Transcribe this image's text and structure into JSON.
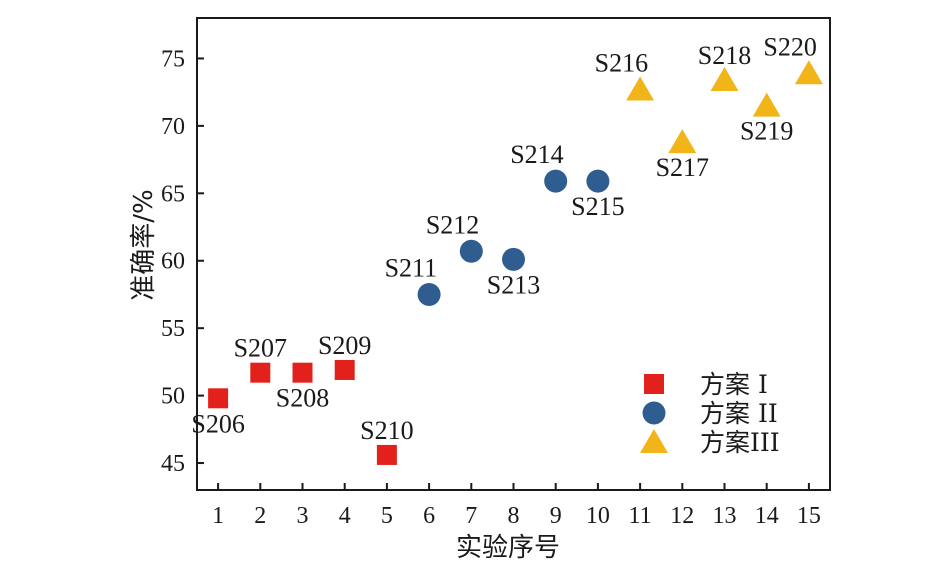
{
  "chart_data": {
    "type": "scatter",
    "xlabel": "实验序号",
    "ylabel": "准确率/%",
    "xlim": [
      0.5,
      15.5
    ],
    "ylim": [
      43,
      78
    ],
    "xticks": [
      1,
      2,
      3,
      4,
      5,
      6,
      7,
      8,
      9,
      10,
      11,
      12,
      13,
      14,
      15
    ],
    "yticks": [
      45,
      50,
      55,
      60,
      65,
      70,
      75
    ],
    "grid": false,
    "legend_position": "bottom-right",
    "series": [
      {
        "name": "方案 I",
        "marker": "square",
        "color": "#e3211c",
        "points": [
          {
            "x": 1,
            "y": 49.8,
            "label": "S206",
            "label_pos": "below"
          },
          {
            "x": 2,
            "y": 51.7,
            "label": "S207",
            "label_pos": "above"
          },
          {
            "x": 3,
            "y": 51.7,
            "label": "S208",
            "label_pos": "below"
          },
          {
            "x": 4,
            "y": 51.9,
            "label": "S209",
            "label_pos": "above"
          },
          {
            "x": 5,
            "y": 45.6,
            "label": "S210",
            "label_pos": "above"
          }
        ]
      },
      {
        "name": "方案 II",
        "marker": "circle",
        "color": "#2f5d8f",
        "points": [
          {
            "x": 6,
            "y": 57.5,
            "label": "S211",
            "label_pos": "above-left"
          },
          {
            "x": 7,
            "y": 60.7,
            "label": "S212",
            "label_pos": "above-left"
          },
          {
            "x": 8,
            "y": 60.1,
            "label": "S213",
            "label_pos": "below"
          },
          {
            "x": 9,
            "y": 65.9,
            "label": "S214",
            "label_pos": "above-left"
          },
          {
            "x": 10,
            "y": 65.9,
            "label": "S215",
            "label_pos": "below"
          }
        ]
      },
      {
        "name": "方案III",
        "marker": "triangle",
        "color": "#f2b519",
        "points": [
          {
            "x": 11,
            "y": 72.7,
            "label": "S216",
            "label_pos": "above-left"
          },
          {
            "x": 12,
            "y": 68.8,
            "label": "S217",
            "label_pos": "below"
          },
          {
            "x": 13,
            "y": 73.4,
            "label": "S218",
            "label_pos": "above"
          },
          {
            "x": 14,
            "y": 71.5,
            "label": "S219",
            "label_pos": "below"
          },
          {
            "x": 15,
            "y": 73.9,
            "label": "S220",
            "label_pos": "above-left"
          }
        ]
      }
    ]
  }
}
